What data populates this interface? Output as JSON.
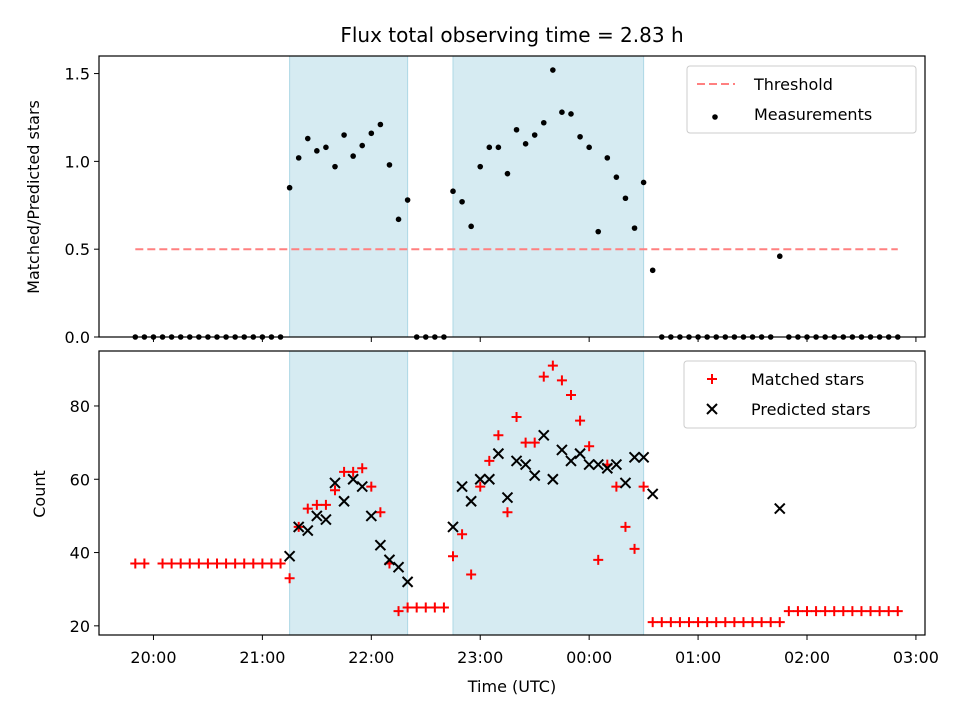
{
  "figure": {
    "title": "Flux total observing time = 2.83 h",
    "xlabel": "Time (UTC)"
  },
  "colors": {
    "threshold": "#ff8080",
    "measurement": "#000000",
    "matched": "#ff0000",
    "predicted": "#000000",
    "band": "#add8e6"
  },
  "chart_data": [
    {
      "type": "scatter",
      "name": "ratio",
      "ylabel": "Matched/Predicted stars",
      "ylim": [
        0,
        1.6
      ],
      "yticks": [
        0,
        0.5,
        1.0,
        1.5
      ],
      "ytick_labels": [
        "0.0",
        "0.5",
        "1.0",
        "1.5"
      ],
      "xlim": [
        "19:30",
        "03:05"
      ],
      "xtick_labels": [
        "20:00",
        "21:00",
        "22:00",
        "23:00",
        "00:00",
        "01:00",
        "02:00",
        "03:00"
      ],
      "shaded_intervals": [
        [
          "21:15",
          "22:20"
        ],
        [
          "22:45",
          "00:30"
        ]
      ],
      "legend": {
        "placement": "top-right",
        "entries": [
          "Threshold",
          "Measurements"
        ]
      },
      "threshold": {
        "name": "Threshold",
        "y": 0.5,
        "x_range": [
          "19:50",
          "02:50"
        ],
        "style": "dashed"
      },
      "series": [
        {
          "name": "Measurements",
          "marker": "dot",
          "x": [
            "19:50",
            "19:55",
            "20:00",
            "20:05",
            "20:10",
            "20:15",
            "20:20",
            "20:25",
            "20:30",
            "20:35",
            "20:40",
            "20:45",
            "20:50",
            "20:55",
            "21:00",
            "21:05",
            "21:10",
            "21:15",
            "21:20",
            "21:25",
            "21:30",
            "21:35",
            "21:40",
            "21:45",
            "21:50",
            "21:55",
            "22:00",
            "22:05",
            "22:10",
            "22:15",
            "22:20",
            "22:25",
            "22:30",
            "22:35",
            "22:40",
            "22:45",
            "22:50",
            "22:55",
            "23:00",
            "23:05",
            "23:10",
            "23:15",
            "23:20",
            "23:25",
            "23:30",
            "23:35",
            "23:40",
            "23:45",
            "23:50",
            "23:55",
            "00:00",
            "00:05",
            "00:10",
            "00:15",
            "00:20",
            "00:25",
            "00:30",
            "00:35",
            "00:40",
            "00:45",
            "00:50",
            "00:55",
            "01:00",
            "01:05",
            "01:10",
            "01:15",
            "01:20",
            "01:25",
            "01:30",
            "01:35",
            "01:40",
            "01:45",
            "01:50",
            "01:55",
            "02:00",
            "02:05",
            "02:10",
            "02:15",
            "02:20",
            "02:25",
            "02:30",
            "02:35",
            "02:40",
            "02:45",
            "02:50"
          ],
          "y": [
            0,
            0,
            0,
            0,
            0,
            0,
            0,
            0,
            0,
            0,
            0,
            0,
            0,
            0,
            0,
            0,
            0,
            0.85,
            1.02,
            1.13,
            1.06,
            1.08,
            0.97,
            1.15,
            1.03,
            1.09,
            1.16,
            1.21,
            0.98,
            0.67,
            0.78,
            0,
            0,
            0,
            0,
            0.83,
            0.77,
            0.63,
            0.97,
            1.08,
            1.08,
            0.93,
            1.18,
            1.1,
            1.15,
            1.22,
            1.52,
            1.28,
            1.27,
            1.14,
            1.08,
            0.6,
            1.02,
            0.91,
            0.79,
            0.62,
            0.88,
            0.38,
            0,
            0,
            0,
            0,
            0,
            0,
            0,
            0,
            0,
            0,
            0,
            0,
            0,
            0.46,
            0,
            0,
            0,
            0,
            0,
            0,
            0,
            0,
            0,
            0,
            0,
            0,
            0
          ]
        }
      ]
    },
    {
      "type": "scatter",
      "name": "counts",
      "ylabel": "Count",
      "ylim": [
        17.5,
        95
      ],
      "yticks": [
        20,
        40,
        60,
        80
      ],
      "ytick_labels": [
        "20",
        "40",
        "60",
        "80"
      ],
      "xlim": [
        "19:30",
        "03:05"
      ],
      "xtick_labels": [
        "20:00",
        "21:00",
        "22:00",
        "23:00",
        "00:00",
        "01:00",
        "02:00",
        "03:00"
      ],
      "shaded_intervals": [
        [
          "21:15",
          "22:20"
        ],
        [
          "22:45",
          "00:30"
        ]
      ],
      "legend": {
        "placement": "top-right",
        "entries": [
          "Matched stars",
          "Predicted stars"
        ]
      },
      "series": [
        {
          "name": "Matched stars",
          "marker": "plus",
          "x": [
            "19:50",
            "19:55",
            "20:05",
            "20:10",
            "20:15",
            "20:20",
            "20:25",
            "20:30",
            "20:35",
            "20:40",
            "20:45",
            "20:50",
            "20:55",
            "21:00",
            "21:05",
            "21:10",
            "21:15",
            "21:20",
            "21:25",
            "21:30",
            "21:35",
            "21:40",
            "21:45",
            "21:50",
            "21:55",
            "22:00",
            "22:05",
            "22:10",
            "22:15",
            "22:20",
            "22:25",
            "22:30",
            "22:35",
            "22:40",
            "22:45",
            "22:50",
            "22:55",
            "23:00",
            "23:05",
            "23:10",
            "23:15",
            "23:20",
            "23:25",
            "23:30",
            "23:35",
            "23:40",
            "23:45",
            "23:50",
            "23:55",
            "00:00",
            "00:05",
            "00:10",
            "00:15",
            "00:20",
            "00:25",
            "00:30",
            "00:35",
            "00:40",
            "00:45",
            "00:50",
            "00:55",
            "01:00",
            "01:05",
            "01:10",
            "01:15",
            "01:20",
            "01:25",
            "01:30",
            "01:35",
            "01:40",
            "01:45",
            "01:50",
            "01:55",
            "02:00",
            "02:05",
            "02:10",
            "02:15",
            "02:20",
            "02:25",
            "02:30",
            "02:35",
            "02:40",
            "02:45",
            "02:50"
          ],
          "y": [
            37,
            37,
            37,
            37,
            37,
            37,
            37,
            37,
            37,
            37,
            37,
            37,
            37,
            37,
            37,
            37,
            33,
            47,
            52,
            53,
            53,
            57,
            62,
            62,
            63,
            58,
            51,
            37,
            24,
            25,
            25,
            25,
            25,
            25,
            39,
            45,
            34,
            58,
            65,
            72,
            51,
            77,
            70,
            70,
            88,
            91,
            87,
            83,
            76,
            69,
            38,
            64,
            58,
            47,
            41,
            58,
            21,
            21,
            21,
            21,
            21,
            21,
            21,
            21,
            21,
            21,
            21,
            21,
            21,
            21,
            21,
            24,
            24,
            24,
            24,
            24,
            24,
            24,
            24,
            24,
            24,
            24,
            24,
            24
          ]
        },
        {
          "name": "Predicted stars",
          "marker": "x",
          "x": [
            "21:15",
            "21:20",
            "21:25",
            "21:30",
            "21:35",
            "21:40",
            "21:45",
            "21:50",
            "21:55",
            "22:00",
            "22:05",
            "22:10",
            "22:15",
            "22:20",
            "22:45",
            "22:50",
            "22:55",
            "23:00",
            "23:05",
            "23:10",
            "23:15",
            "23:20",
            "23:25",
            "23:30",
            "23:35",
            "23:40",
            "23:45",
            "23:50",
            "23:55",
            "00:00",
            "00:05",
            "00:10",
            "00:15",
            "00:20",
            "00:25",
            "00:30",
            "00:35",
            "01:45"
          ],
          "y": [
            39,
            47,
            46,
            50,
            49,
            59,
            54,
            60,
            58,
            50,
            42,
            38,
            36,
            32,
            47,
            58,
            54,
            60,
            60,
            67,
            55,
            65,
            64,
            61,
            72,
            60,
            68,
            65,
            67,
            64,
            64,
            63,
            64,
            59,
            66,
            66,
            56,
            52
          ]
        }
      ]
    }
  ]
}
